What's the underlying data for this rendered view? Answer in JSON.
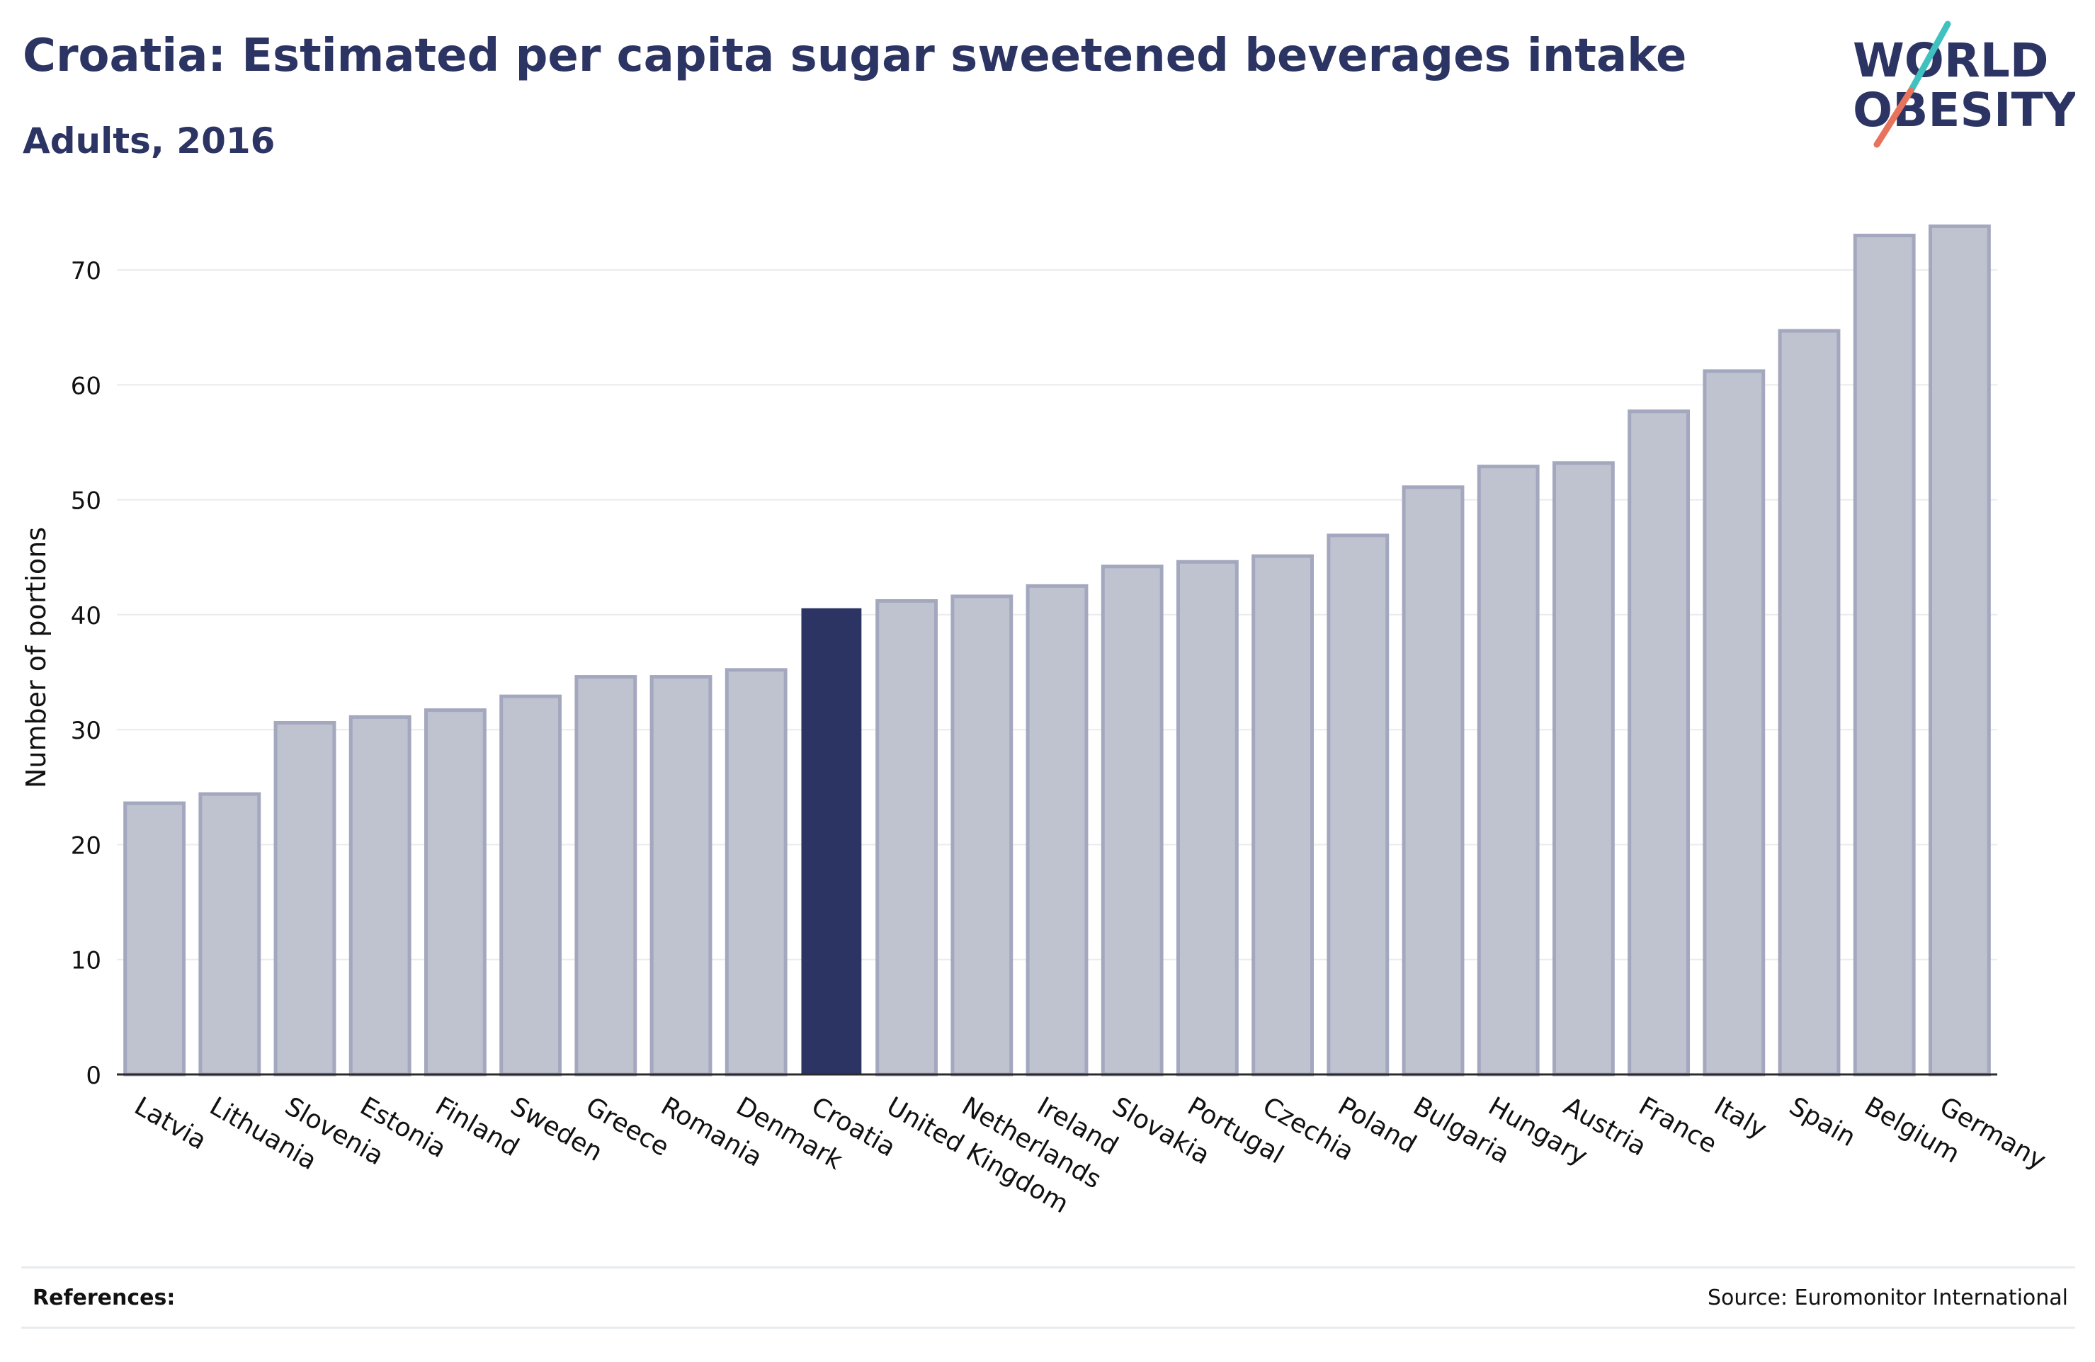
{
  "header": {
    "title": "Croatia: Estimated per capita sugar sweetened beverages intake",
    "subtitle": "Adults, 2016"
  },
  "logo": {
    "line1": "WORLD",
    "line2": "OBESITY"
  },
  "footer": {
    "references_label": "References:",
    "source": "Source: Euromonitor International"
  },
  "colors": {
    "bar": "#bfc2cf",
    "bar_border": "#a4a8be",
    "highlight": "#2b3462",
    "axis": "#2b2b2b",
    "grid": "#e9ebee",
    "logo_teal": "#3fc1c0",
    "logo_coral": "#e8735c"
  },
  "chart_data": {
    "type": "bar",
    "title": "Croatia: Estimated per capita sugar sweetened beverages intake",
    "subtitle": "Adults, 2016",
    "xlabel": "",
    "ylabel": "Number of portions",
    "ylim": [
      0,
      75
    ],
    "yticks": [
      0,
      10,
      20,
      30,
      40,
      50,
      60,
      70
    ],
    "grid": true,
    "highlight": "Croatia",
    "categories": [
      "Latvia",
      "Lithuania",
      "Slovenia",
      "Estonia",
      "Finland",
      "Sweden",
      "Greece",
      "Romania",
      "Denmark",
      "Croatia",
      "United Kingdom",
      "Netherlands",
      "Ireland",
      "Slovakia",
      "Portugal",
      "Czechia",
      "Poland",
      "Bulgaria",
      "Hungary",
      "Austria",
      "France",
      "Italy",
      "Spain",
      "Belgium",
      "Germany"
    ],
    "values": [
      23.6,
      24.4,
      30.6,
      31.1,
      31.7,
      32.9,
      34.6,
      34.6,
      35.2,
      40.5,
      41.2,
      41.6,
      42.5,
      44.2,
      44.6,
      45.1,
      46.9,
      51.1,
      52.9,
      53.2,
      57.7,
      61.2,
      64.7,
      73.0,
      73.8
    ]
  }
}
